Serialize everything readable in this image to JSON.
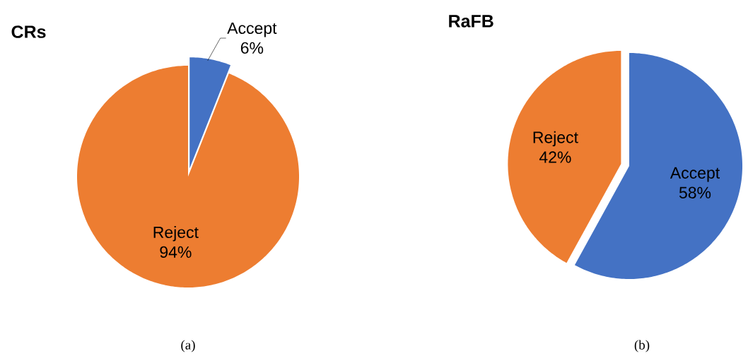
{
  "chart_data": [
    {
      "type": "pie",
      "title": "CRs",
      "categories": [
        "Accept",
        "Reject"
      ],
      "values": [
        6,
        94
      ],
      "colors": [
        "#4472c4",
        "#ed7d31"
      ],
      "value_labels": [
        "6%",
        "94%"
      ],
      "annotations": [
        "(a)"
      ]
    },
    {
      "type": "pie",
      "title": "RaFB",
      "categories": [
        "Accept",
        "Reject"
      ],
      "values": [
        58,
        42
      ],
      "colors": [
        "#4472c4",
        "#ed7d31"
      ],
      "value_labels": [
        "58%",
        "42%"
      ],
      "annotations": [
        "(b)"
      ]
    }
  ]
}
